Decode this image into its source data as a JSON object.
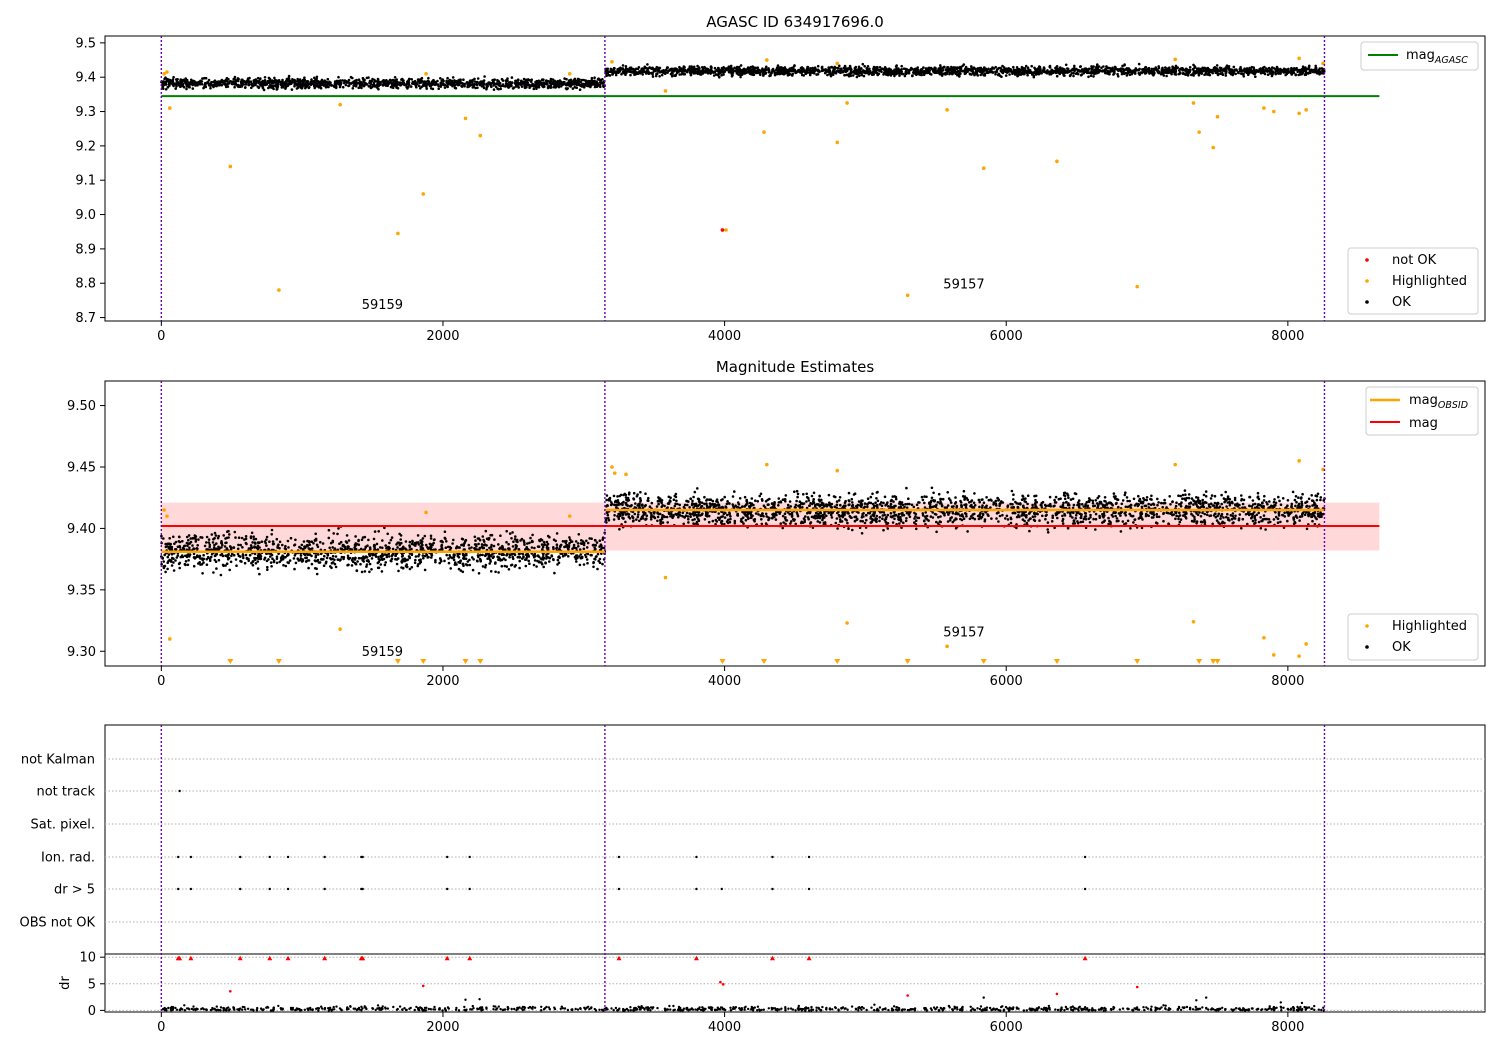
{
  "chart_data": [
    {
      "type": "scatter",
      "title": "AGASC ID 634917696.0",
      "xlim": [
        -400,
        9400
      ],
      "ylim": [
        8.69,
        9.52
      ],
      "xticks": [
        0,
        2000,
        4000,
        6000,
        8000
      ],
      "yticks": [
        8.7,
        8.8,
        8.9,
        9.0,
        9.1,
        9.2,
        9.3,
        9.4,
        9.5
      ],
      "vlines": [
        0,
        3150,
        8260
      ],
      "hline": {
        "name": "mag_AGASC",
        "y": 9.345,
        "x": [
          0,
          8650
        ],
        "color": "#008000"
      },
      "obsid_labels": [
        {
          "text": "59159",
          "x": 1570,
          "y": 8.725
        },
        {
          "text": "59157",
          "x": 5700,
          "y": 8.785
        }
      ],
      "series": [
        {
          "name": "not OK",
          "color": "#ff0000",
          "points": [
            [
              3985,
              8.955
            ]
          ]
        },
        {
          "name": "Highlighted",
          "color": "#ffa500",
          "points": [
            [
              60,
              9.31
            ],
            [
              490,
              9.14
            ],
            [
              835,
              8.78
            ],
            [
              1270,
              9.32
            ],
            [
              1680,
              8.945
            ],
            [
              1860,
              9.06
            ],
            [
              2160,
              9.28
            ],
            [
              2265,
              9.23
            ],
            [
              3985,
              8.955
            ],
            [
              4010,
              8.955
            ],
            [
              3580,
              9.36
            ],
            [
              4280,
              9.24
            ],
            [
              4800,
              9.21
            ],
            [
              4870,
              9.325
            ],
            [
              5300,
              8.765
            ],
            [
              5580,
              9.305
            ],
            [
              5840,
              9.135
            ],
            [
              6360,
              9.155
            ],
            [
              6930,
              8.79
            ],
            [
              7330,
              9.325
            ],
            [
              7370,
              9.24
            ],
            [
              7470,
              9.195
            ],
            [
              7500,
              9.285
            ],
            [
              7830,
              9.31
            ],
            [
              7900,
              9.3
            ],
            [
              8080,
              9.295
            ],
            [
              8130,
              9.305
            ]
          ]
        },
        {
          "name": "OK",
          "color": "#000000",
          "segments": [
            {
              "x": [
                0,
                3150
              ],
              "y_center": 9.382,
              "spread": 0.012
            },
            {
              "x": [
                3155,
                8260
              ],
              "y_center": 9.418,
              "spread": 0.011
            }
          ]
        }
      ],
      "legend_upper": [
        "mag_AGASC"
      ],
      "legend_lower": [
        "not OK",
        "Highlighted",
        "OK"
      ]
    },
    {
      "type": "scatter",
      "title": "Magnitude Estimates",
      "xlim": [
        -400,
        9400
      ],
      "ylim": [
        9.288,
        9.52
      ],
      "xticks": [
        0,
        2000,
        4000,
        6000,
        8000
      ],
      "yticks": [
        9.3,
        9.35,
        9.4,
        9.45,
        9.5
      ],
      "vlines": [
        0,
        3150,
        8260
      ],
      "band": {
        "y": [
          9.382,
          9.421
        ],
        "x": [
          0,
          8650
        ],
        "color": "#ffcccc"
      },
      "hlines": [
        {
          "name": "mag",
          "y": 9.402,
          "x": [
            0,
            8650
          ],
          "color": "#ff0000"
        },
        {
          "name": "mag_OBSID",
          "y": 9.381,
          "x": [
            0,
            3150
          ],
          "color": "#ffa500"
        },
        {
          "name": "mag_OBSID",
          "y": 9.415,
          "x": [
            3155,
            8260
          ],
          "color": "#ffa500"
        }
      ],
      "obsid_labels": [
        {
          "text": "59159",
          "x": 1570,
          "y": 9.296
        },
        {
          "text": "59157",
          "x": 5700,
          "y": 9.312
        }
      ],
      "highlighted_points": [
        [
          60,
          9.31
        ],
        [
          1270,
          9.318
        ],
        [
          3580,
          9.36
        ],
        [
          4870,
          9.323
        ],
        [
          5580,
          9.304
        ],
        [
          7330,
          9.324
        ],
        [
          7830,
          9.311
        ],
        [
          7900,
          9.297
        ],
        [
          8080,
          9.296
        ],
        [
          8130,
          9.306
        ]
      ],
      "offscale_markers_x": [
        490,
        835,
        1680,
        1860,
        2160,
        2265,
        3985,
        4280,
        4800,
        5300,
        5840,
        6360,
        6930,
        7370,
        7470,
        7500
      ],
      "ok_segments": [
        {
          "x": [
            0,
            3150
          ],
          "y_center": 9.381,
          "spread": 0.012
        },
        {
          "x": [
            3155,
            8260
          ],
          "y_center": 9.415,
          "spread": 0.011
        }
      ],
      "legend_upper": [
        "mag_OBSID",
        "mag"
      ],
      "legend_lower": [
        "Highlighted",
        "OK"
      ]
    },
    {
      "type": "scatter",
      "title": "",
      "xlim": [
        -400,
        9400
      ],
      "xticks": [
        0,
        2000,
        4000,
        6000,
        8000
      ],
      "vlines": [
        0,
        3150,
        8260
      ],
      "flag_rows": [
        "not Kalman",
        "not track",
        "Sat. pixel.",
        "Ion. rad.",
        "dr > 5",
        "OBS not OK"
      ],
      "flag_points": {
        "not track": [
          130
        ],
        "Ion. rad.": [
          120,
          210,
          560,
          770,
          900,
          1160,
          1420,
          1430,
          2030,
          2190,
          3250,
          3800,
          4340,
          4600,
          6560
        ],
        "dr > 5": [
          120,
          210,
          560,
          770,
          900,
          1160,
          1420,
          1430,
          2030,
          2190,
          3250,
          3800,
          3980,
          4340,
          4600,
          6560
        ]
      },
      "dr_panel": {
        "ylabel": "dr",
        "ylim": [
          -0.3,
          10.6
        ],
        "yticks": [
          0,
          5,
          10
        ],
        "red_points": [
          [
            120,
            9.8
          ],
          [
            130,
            9.8
          ],
          [
            210,
            9.8
          ],
          [
            490,
            3.6
          ],
          [
            560,
            9.8
          ],
          [
            770,
            9.8
          ],
          [
            900,
            9.8
          ],
          [
            1160,
            9.8
          ],
          [
            1420,
            9.8
          ],
          [
            1430,
            9.8
          ],
          [
            1860,
            4.6
          ],
          [
            2030,
            9.8
          ],
          [
            2190,
            9.8
          ],
          [
            3250,
            9.8
          ],
          [
            3800,
            9.8
          ],
          [
            3970,
            5.3
          ],
          [
            3990,
            4.9
          ],
          [
            4340,
            9.8
          ],
          [
            4600,
            9.8
          ],
          [
            5300,
            2.8
          ],
          [
            6360,
            3.1
          ],
          [
            6560,
            9.8
          ],
          [
            6930,
            4.4
          ]
        ],
        "black_outliers": [
          [
            2160,
            2.0
          ],
          [
            2260,
            2.1
          ],
          [
            5840,
            2.4
          ],
          [
            7350,
            1.9
          ],
          [
            7420,
            2.4
          ],
          [
            7950,
            1.5
          ],
          [
            8100,
            1.4
          ]
        ]
      }
    }
  ]
}
